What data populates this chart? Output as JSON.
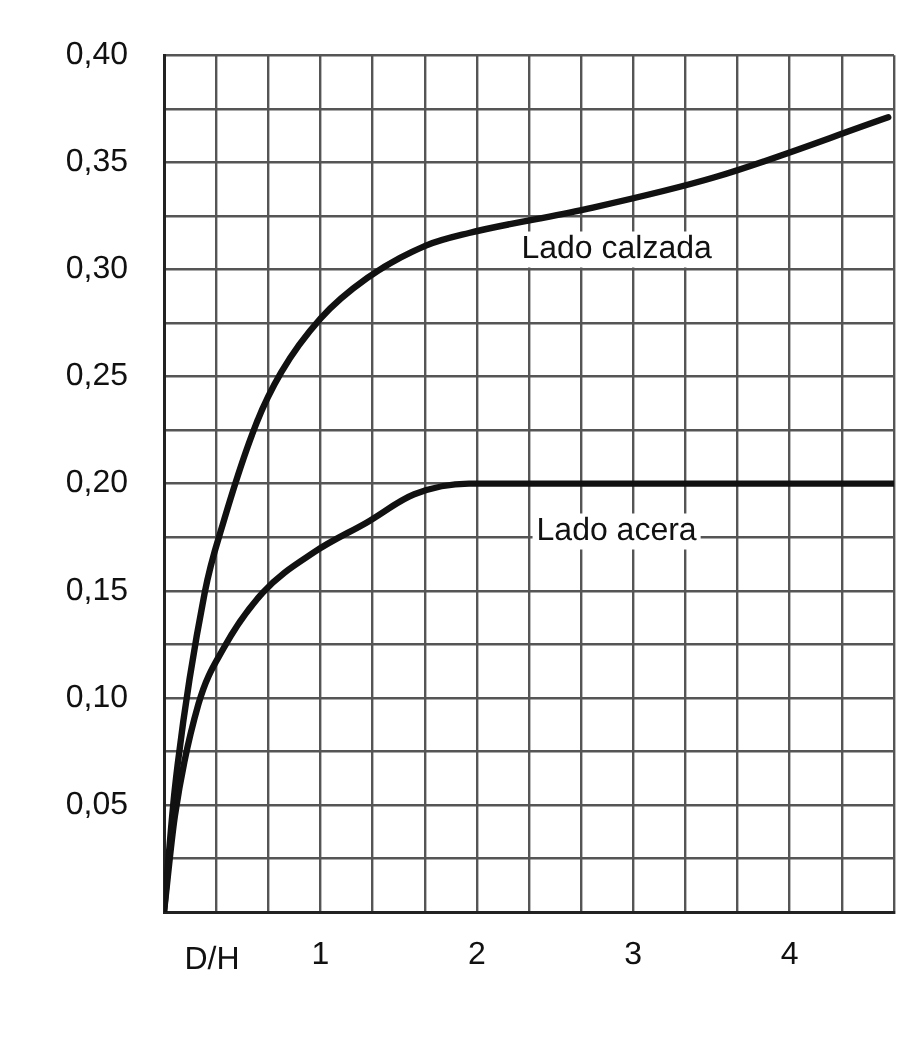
{
  "chart_data": {
    "type": "line",
    "xlabel": "D/H",
    "grid": true,
    "legend": false,
    "marker": "none",
    "line_style": "solid",
    "xlim": [
      0,
      4.667
    ],
    "ylim": [
      0,
      0.4
    ],
    "xticks": [
      {
        "value": 0,
        "label": null
      },
      {
        "value": 0.333,
        "label": null
      },
      {
        "value": 0.667,
        "label": null
      },
      1,
      {
        "value": 1.333,
        "label": null
      },
      {
        "value": 1.667,
        "label": null
      },
      2,
      {
        "value": 2.333,
        "label": null
      },
      {
        "value": 2.667,
        "label": null
      },
      3,
      {
        "value": 3.333,
        "label": null
      },
      {
        "value": 3.667,
        "label": null
      },
      4,
      {
        "value": 4.333,
        "label": null
      },
      {
        "value": 4.667,
        "label": null
      }
    ],
    "yticks": [
      {
        "value": 0,
        "label": null
      },
      {
        "value": 0.025,
        "label": null
      },
      {
        "value": 0.05,
        "label": "0,05"
      },
      {
        "value": 0.075,
        "label": null
      },
      {
        "value": 0.1,
        "label": "0,10"
      },
      {
        "value": 0.125,
        "label": null
      },
      {
        "value": 0.15,
        "label": "0,15"
      },
      {
        "value": 0.175,
        "label": null
      },
      {
        "value": 0.2,
        "label": "0,20"
      },
      {
        "value": 0.225,
        "label": null
      },
      {
        "value": 0.25,
        "label": "0,25"
      },
      {
        "value": 0.275,
        "label": null
      },
      {
        "value": 0.3,
        "label": "0,30"
      },
      {
        "value": 0.325,
        "label": null
      },
      {
        "value": 0.35,
        "label": "0,35"
      },
      {
        "value": 0.375,
        "label": null
      },
      {
        "value": 0.4,
        "label": "0,40"
      }
    ],
    "series": [
      {
        "name": "Lado calzada",
        "color": "#111111",
        "x": [
          0,
          0.07,
          0.26,
          0.38,
          0.59,
          0.75,
          1.0,
          1.3,
          1.67,
          1.95,
          2.69,
          3.52,
          4.63
        ],
        "values": [
          0,
          0.058,
          0.149,
          0.182,
          0.228,
          0.252,
          0.277,
          0.296,
          0.311,
          0.317,
          0.328,
          0.343,
          0.371
        ]
      },
      {
        "name": "Lado acera",
        "color": "#111111",
        "x": [
          0,
          0.07,
          0.22,
          0.38,
          0.63,
          0.96,
          1.3,
          1.6,
          1.95,
          4.667
        ],
        "values": [
          0,
          0.045,
          0.097,
          0.123,
          0.149,
          0.168,
          0.182,
          0.195,
          0.2,
          0.2
        ]
      }
    ]
  }
}
